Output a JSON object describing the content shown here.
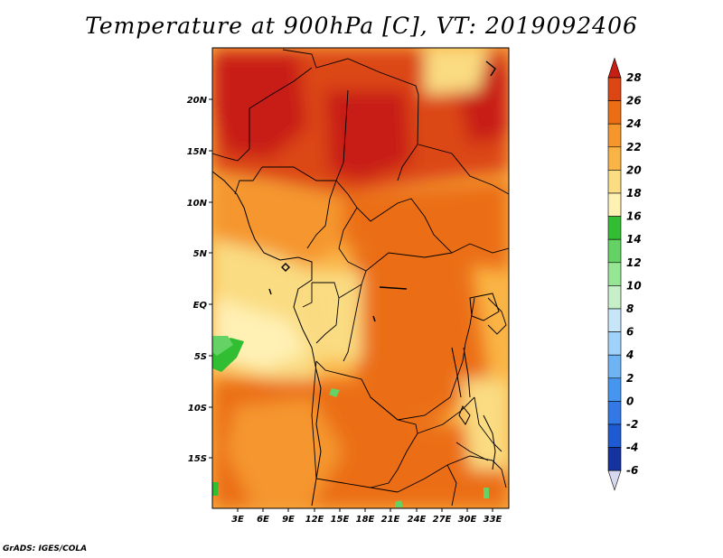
{
  "title": "Temperature at 900hPa [C], VT: 2019092406",
  "credit": "GrADS: IGES/COLA",
  "map": {
    "lat_labels": [
      "20N",
      "15N",
      "10N",
      "5N",
      "EQ",
      "5S",
      "10S",
      "15S"
    ],
    "lon_labels": [
      "3E",
      "6E",
      "9E",
      "12E",
      "15E",
      "18E",
      "21E",
      "24E",
      "27E",
      "30E",
      "33E"
    ]
  },
  "colorbar": {
    "levels": [
      "28",
      "26",
      "24",
      "22",
      "20",
      "18",
      "16",
      "14",
      "12",
      "10",
      "8",
      "6",
      "4",
      "2",
      "0",
      "-2",
      "-4",
      "-6"
    ],
    "colors": [
      "#0a0a6e",
      "#1432a0",
      "#1e5ad2",
      "#3278e6",
      "#4696f0",
      "#6eb4f5",
      "#a0d2fa",
      "#c8e6fa",
      "#c8f0c8",
      "#96e696",
      "#64d264",
      "#32be32",
      "#fff0b4",
      "#fadc82",
      "#fab446",
      "#f5962d",
      "#eb6e14",
      "#dc4614",
      "#c81e14"
    ]
  },
  "chart_data": {
    "type": "heatmap",
    "title": "Temperature at 900hPa [C], VT: 2019092406",
    "variable": "Temperature at 900hPa",
    "unit": "C",
    "valid_time": "2019092406",
    "x_ticks": [
      "3E",
      "6E",
      "9E",
      "12E",
      "15E",
      "18E",
      "21E",
      "24E",
      "27E",
      "30E",
      "33E"
    ],
    "y_ticks": [
      "20N",
      "15N",
      "10N",
      "5N",
      "EQ",
      "5S",
      "10S",
      "15S"
    ],
    "colorbar_levels": [
      -6,
      -4,
      -2,
      0,
      2,
      4,
      6,
      8,
      10,
      12,
      14,
      16,
      18,
      20,
      22,
      24,
      26,
      28
    ]
  }
}
